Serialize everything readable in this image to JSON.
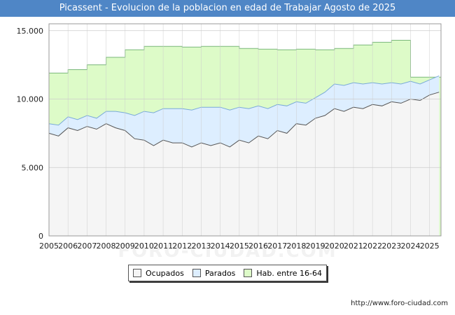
{
  "title": "Picassent - Evolucion de la poblacion en edad de Trabajar Agosto de 2025",
  "watermark": "FORO-CIUDAD.COM",
  "url": "http://www.foro-ciudad.com",
  "chart_data": {
    "type": "area",
    "title": "Picassent - Evolucion de la poblacion en edad de Trabajar Agosto de 2025",
    "x_tick_labels": [
      "2005",
      "2006",
      "2007",
      "2008",
      "2009",
      "2010",
      "2011",
      "2012",
      "2013",
      "2014",
      "2015",
      "2016",
      "2017",
      "2018",
      "2019",
      "2020",
      "2021",
      "2022",
      "2023",
      "2024",
      "2025"
    ],
    "y_tick_labels": [
      "0",
      "5.000",
      "10.000",
      "15.000"
    ],
    "ylim": [
      0,
      15500
    ],
    "xlim": [
      2005.0,
      2025.6
    ],
    "grid": true,
    "legend_position": "bottom",
    "colors": {
      "ocupados_fill": "#f5f5f5",
      "parados_fill": "#ddeeff",
      "hab_fill": "#ddfbc8",
      "hab_line": "#7ab87a",
      "parados_line": "#7aaad8",
      "ocupados_line": "#555555",
      "grid": "#cccccc"
    },
    "series": [
      {
        "name": "Ocupados",
        "x": [
          2005,
          2005.5,
          2006,
          2006.5,
          2007,
          2007.5,
          2008,
          2008.5,
          2009,
          2009.5,
          2010,
          2010.5,
          2011,
          2011.5,
          2012,
          2012.5,
          2013,
          2013.5,
          2014,
          2014.5,
          2015,
          2015.5,
          2016,
          2016.5,
          2017,
          2017.5,
          2018,
          2018.5,
          2019,
          2019.5,
          2020,
          2020.5,
          2021,
          2021.5,
          2022,
          2022.5,
          2023,
          2023.5,
          2024,
          2024.5,
          2025,
          2025.5
        ],
        "values": [
          7500,
          7300,
          7900,
          7700,
          8000,
          7800,
          8200,
          7900,
          7700,
          7100,
          7000,
          6600,
          7000,
          6800,
          6800,
          6500,
          6800,
          6600,
          6800,
          6500,
          7000,
          6800,
          7300,
          7100,
          7700,
          7500,
          8200,
          8100,
          8600,
          8800,
          9300,
          9100,
          9400,
          9300,
          9600,
          9500,
          9800,
          9700,
          10000,
          9900,
          10300,
          10500
        ]
      },
      {
        "name": "Parados",
        "x": [
          2005,
          2005.5,
          2006,
          2006.5,
          2007,
          2007.5,
          2008,
          2008.5,
          2009,
          2009.5,
          2010,
          2010.5,
          2011,
          2011.5,
          2012,
          2012.5,
          2013,
          2013.5,
          2014,
          2014.5,
          2015,
          2015.5,
          2016,
          2016.5,
          2017,
          2017.5,
          2018,
          2018.5,
          2019,
          2019.5,
          2020,
          2020.5,
          2021,
          2021.5,
          2022,
          2022.5,
          2023,
          2023.5,
          2024,
          2024.5,
          2025,
          2025.5
        ],
        "values": [
          700,
          800,
          800,
          800,
          800,
          800,
          900,
          1200,
          1300,
          1700,
          2100,
          2400,
          2300,
          2500,
          2500,
          2700,
          2600,
          2800,
          2600,
          2700,
          2400,
          2500,
          2200,
          2200,
          1900,
          2000,
          1600,
          1600,
          1500,
          1700,
          1800,
          1900,
          1800,
          1800,
          1600,
          1600,
          1400,
          1400,
          1300,
          1200,
          1100,
          1200
        ]
      },
      {
        "name": "Hab. entre 16-64",
        "x": [
          2005,
          2006,
          2007,
          2008,
          2009,
          2010,
          2011,
          2012,
          2013,
          2014,
          2015,
          2016,
          2017,
          2018,
          2019,
          2020,
          2021,
          2022,
          2023,
          2024
        ],
        "values": [
          11900,
          12150,
          12500,
          13050,
          13600,
          13850,
          13850,
          13800,
          13850,
          13850,
          13700,
          13650,
          13600,
          13650,
          13600,
          13700,
          13950,
          14150,
          14300,
          11600
        ]
      }
    ]
  }
}
